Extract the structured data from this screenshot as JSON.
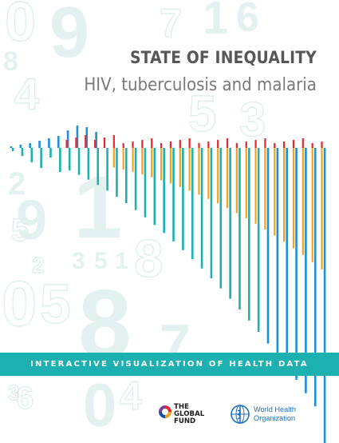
{
  "title": "STATE OF INEQUALITY",
  "subtitle": "HIV, tuberculosis and malaria",
  "band_text": "INTERACTIVE VISUALIZATION OF HEALTH DATA",
  "logos": {
    "global_fund": [
      "THE",
      "GLOBAL",
      "FUND"
    ],
    "who": [
      "World Health",
      "Organization"
    ]
  },
  "colors": {
    "teal": "#1cb0b0",
    "blue": "#1f8fd6",
    "orange": "#f2a31b",
    "red": "#e8262c",
    "gray_text": "#575757"
  },
  "background_digits": [
    "0",
    "9",
    "7",
    "1",
    "6",
    "4",
    "8",
    "5",
    "3",
    "2",
    "1",
    "5",
    "9",
    "8",
    "3",
    "5",
    "1",
    "2",
    "0",
    "5",
    "8",
    "7",
    "6",
    "3",
    "0",
    "4"
  ]
}
